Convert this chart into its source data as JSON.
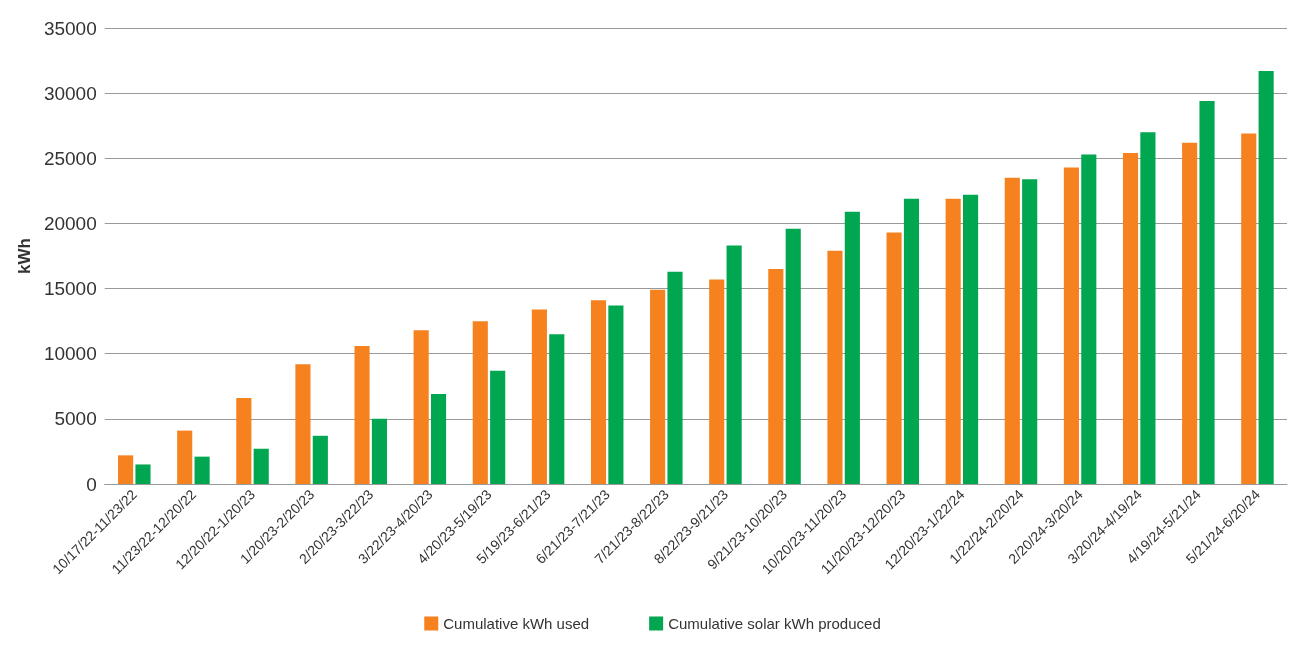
{
  "chart_data": {
    "type": "bar",
    "ylabel": "kWh",
    "categories": [
      "10/17/22-11/23/22",
      "11/23/22-12/20/22",
      "12/20/22-1/20/23",
      "1/20/23-2/20/23",
      "2/20/23-3/22/23",
      "3/22/23-4/20/23",
      "4/20/23-5/19/23",
      "5/19/23-6/21/23",
      "6/21/23-7/21/23",
      "7/21/23-8/22/23",
      "8/22/23-9/21/23",
      "9/21/23-10/20/23",
      "10/20/23-11/20/23",
      "11/20/23-12/20/23",
      "12/20/23-1/22/24",
      "1/22/24-2/20/24",
      "2/20/24-3/20/24",
      "3/20/24-4/19/24",
      "4/19/24-5/21/24",
      "5/21/24-6/20/24"
    ],
    "series": [
      {
        "name": "Cumulative kWh used",
        "color": "#f5821f",
        "values": [
          2200,
          4100,
          6600,
          9200,
          10600,
          11800,
          12500,
          13400,
          14100,
          14900,
          15700,
          16500,
          17900,
          19300,
          21900,
          23500,
          24300,
          25400,
          26200,
          26900
        ]
      },
      {
        "name": "Cumulative solar kWh produced",
        "color": "#00a650",
        "values": [
          1500,
          2100,
          2700,
          3700,
          5000,
          6900,
          8700,
          11500,
          13700,
          16300,
          18300,
          19600,
          20900,
          21900,
          22200,
          23400,
          25300,
          27000,
          29400,
          31700
        ]
      }
    ],
    "ylim": [
      0,
      35000
    ],
    "yticks": [
      0,
      5000,
      10000,
      15000,
      20000,
      25000,
      30000,
      35000
    ],
    "grid": "y",
    "legend": "bottom"
  }
}
